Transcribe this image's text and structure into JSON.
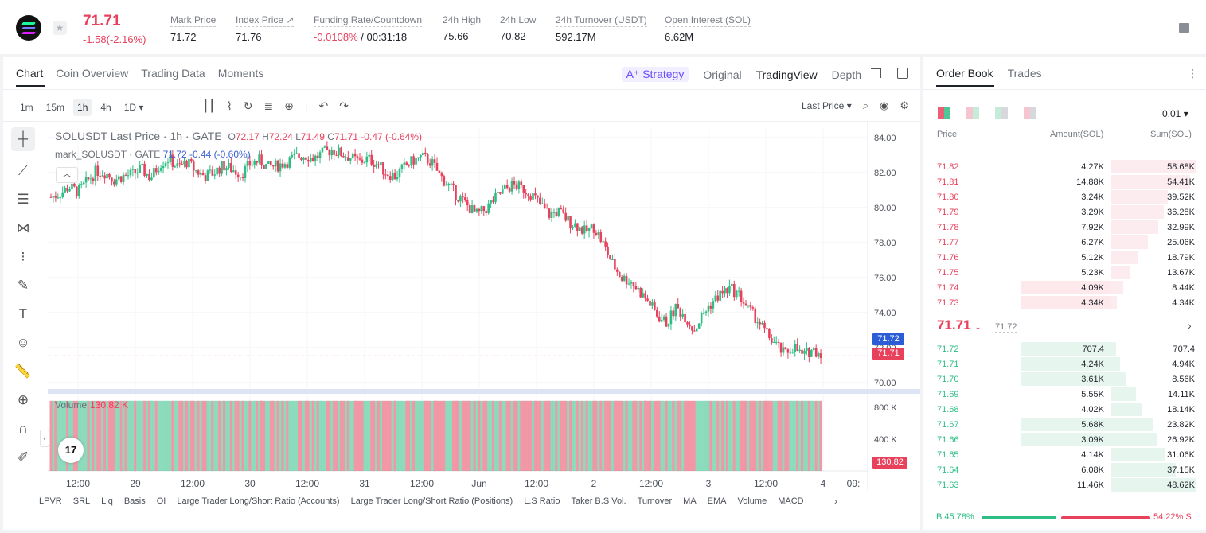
{
  "header": {
    "last_price": "71.71",
    "change": "-1.58(-2.16%)",
    "stats": [
      {
        "label": "Mark Price",
        "value": "71.72"
      },
      {
        "label": "Index Price ↗",
        "value": "71.76"
      },
      {
        "label": "Funding Rate/Countdown",
        "value_neg": "-0.0108%",
        "value": " / 00:31:18"
      },
      {
        "label": "24h High",
        "value": "75.66"
      },
      {
        "label": "24h Low",
        "value": "70.82"
      },
      {
        "label": "24h Turnover (USDT)",
        "value": "592.17M"
      },
      {
        "label": "Open Interest (SOL)",
        "value": "6.62M"
      }
    ]
  },
  "chart_tabs": [
    "Chart",
    "Coin Overview",
    "Trading Data",
    "Moments"
  ],
  "view_tabs": {
    "strategy": "A⁺ Strategy",
    "original": "Original",
    "tradingview": "TradingView",
    "depth": "Depth"
  },
  "intervals": [
    "1m",
    "15m",
    "1h",
    "4h",
    "1D ▾"
  ],
  "price_source": "Last Price ▾",
  "legend": {
    "symbol": "SOLUSDT Last Price · 1h · GATE",
    "o_label": "O",
    "o": "72.17",
    "h_label": "H",
    "h": "72.24",
    "l_label": "L",
    "l": "71.49",
    "c_label": "C",
    "c": "71.71",
    "chg": "-0.47 (-0.64%)",
    "mark_name": "mark_SOLUSDT · GATE",
    "mark_vals": "71.72 -0.44 (-0.60%)"
  },
  "volume": {
    "label": "Volume",
    "value": "130.82 K"
  },
  "price_tags": {
    "mark": "71.72",
    "last": "71.71",
    "volume": "130.82 K"
  },
  "indicators": [
    "LPVR",
    "SRL",
    "Liq",
    "Basis",
    "OI",
    "Large Trader Long/Short Ratio (Accounts)",
    "Large Trader Long/Short Ratio (Positions)",
    "L.S Ratio",
    "Taker B.S Vol.",
    "Turnover",
    "MA",
    "EMA",
    "Volume",
    "MACD"
  ],
  "chart_data": {
    "type": "candlestick",
    "price_axis": [
      "84.00",
      "82.00",
      "80.00",
      "78.00",
      "76.00",
      "74.00",
      "72.00",
      "70.00"
    ],
    "volume_axis": [
      "800 K",
      "400 K"
    ],
    "time_axis": [
      "12:00",
      "29",
      "12:00",
      "30",
      "12:00",
      "31",
      "12:00",
      "Jun",
      "12:00",
      "2",
      "12:00",
      "3",
      "12:00",
      "4",
      "09:"
    ],
    "ylim": [
      70,
      84
    ],
    "close_path": [
      80.6,
      80.8,
      81.2,
      80.9,
      81.5,
      82.1,
      82.0,
      81.6,
      81.8,
      81.9,
      82.2,
      81.7,
      82.5,
      82.8,
      82.3,
      82.6,
      82.1,
      81.8,
      82.0,
      82.4,
      82.2,
      81.9,
      82.5,
      82.7,
      82.3,
      82.4,
      82.6,
      82.9,
      83.0,
      82.8,
      83.1,
      83.3,
      83.1,
      82.9,
      82.6,
      82.8,
      82.5,
      82.0,
      81.8,
      82.3,
      82.7,
      82.9,
      82.6,
      81.8,
      81.2,
      80.6,
      80.1,
      79.6,
      79.9,
      80.5,
      81.0,
      81.3,
      81.1,
      80.8,
      80.2,
      79.6,
      79.8,
      79.3,
      79.0,
      78.6,
      78.9,
      77.9,
      76.8,
      76.0,
      75.8,
      75.2,
      74.6,
      73.8,
      73.4,
      74.3,
      73.8,
      73.0,
      73.9,
      74.6,
      75.1,
      75.4,
      75.0,
      74.2,
      73.6,
      72.8,
      72.2,
      71.6,
      72.1,
      71.5,
      71.9,
      71.7
    ],
    "mark_price": 71.72,
    "last_price": 71.71,
    "volume_peak": "900 K"
  },
  "orderbook": {
    "tabs": [
      "Order Book",
      "Trades"
    ],
    "step": "0.01 ▾",
    "headers": {
      "price": "Price",
      "amount": "Amount(SOL)",
      "sum": "Sum(SOL)"
    },
    "asks": [
      {
        "price": "71.82",
        "amount": "4.27K",
        "sum": "58.68K",
        "amount_frac": 0.0,
        "sum_frac": 1.0
      },
      {
        "price": "71.81",
        "amount": "14.88K",
        "sum": "54.41K",
        "amount_frac": 0.0,
        "sum_frac": 0.93
      },
      {
        "price": "71.80",
        "amount": "3.24K",
        "sum": "39.52K",
        "amount_frac": 0.0,
        "sum_frac": 0.67
      },
      {
        "price": "71.79",
        "amount": "3.29K",
        "sum": "36.28K",
        "amount_frac": 0.0,
        "sum_frac": 0.62
      },
      {
        "price": "71.78",
        "amount": "7.92K",
        "sum": "32.99K",
        "amount_frac": 0.0,
        "sum_frac": 0.56
      },
      {
        "price": "71.77",
        "amount": "6.27K",
        "sum": "25.06K",
        "amount_frac": 0.0,
        "sum_frac": 0.43
      },
      {
        "price": "71.76",
        "amount": "5.12K",
        "sum": "18.79K",
        "amount_frac": 0.0,
        "sum_frac": 0.32
      },
      {
        "price": "71.75",
        "amount": "5.23K",
        "sum": "13.67K",
        "amount_frac": 0.0,
        "sum_frac": 0.23
      },
      {
        "price": "71.74",
        "amount": "4.09K",
        "sum": "8.44K",
        "amount_frac": 1.0,
        "sum_frac": 0.14
      },
      {
        "price": "71.73",
        "amount": "4.34K",
        "sum": "4.34K",
        "amount_frac": 1.0,
        "sum_frac": 0.07
      }
    ],
    "mid": {
      "price": "71.71 ↓",
      "mark": "71.72"
    },
    "bids": [
      {
        "price": "71.72",
        "amount": "707.4",
        "sum": "707.4",
        "amount_frac": 1.0,
        "sum_frac": 0.0
      },
      {
        "price": "71.71",
        "amount": "4.24K",
        "sum": "4.94K",
        "amount_frac": 1.0,
        "sum_frac": 0.1
      },
      {
        "price": "71.70",
        "amount": "3.61K",
        "sum": "8.56K",
        "amount_frac": 1.0,
        "sum_frac": 0.18
      },
      {
        "price": "71.69",
        "amount": "5.55K",
        "sum": "14.11K",
        "amount_frac": 0.0,
        "sum_frac": 0.29
      },
      {
        "price": "71.68",
        "amount": "4.02K",
        "sum": "18.14K",
        "amount_frac": 0.0,
        "sum_frac": 0.37
      },
      {
        "price": "71.67",
        "amount": "5.68K",
        "sum": "23.82K",
        "amount_frac": 1.0,
        "sum_frac": 0.49
      },
      {
        "price": "71.66",
        "amount": "3.09K",
        "sum": "26.92K",
        "amount_frac": 1.0,
        "sum_frac": 0.55
      },
      {
        "price": "71.65",
        "amount": "4.14K",
        "sum": "31.06K",
        "amount_frac": 0.0,
        "sum_frac": 0.64
      },
      {
        "price": "71.64",
        "amount": "6.08K",
        "sum": "37.15K",
        "amount_frac": 0.0,
        "sum_frac": 0.76
      },
      {
        "price": "71.63",
        "amount": "11.46K",
        "sum": "48.62K",
        "amount_frac": 0.0,
        "sum_frac": 1.0
      }
    ],
    "ratio_buy": "B 45.78%",
    "ratio_sell": "54.22% S",
    "buy_frac": 0.4578
  },
  "colors": {
    "up": "#2ebd85",
    "down": "#e8415c",
    "accent": "#6a4bff"
  }
}
